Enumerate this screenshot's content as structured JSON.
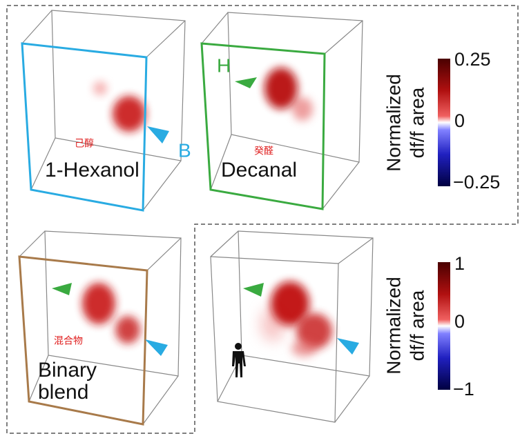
{
  "panels": [
    {
      "label": "1-Hexanol",
      "translation": "己醇",
      "marker": "B"
    },
    {
      "label": "Decanal",
      "translation": "癸醛",
      "marker": "H"
    },
    {
      "label_lines": [
        "Binary",
        "blend"
      ],
      "translation": "混合物"
    },
    {}
  ],
  "colorbars": [
    {
      "title_lines": [
        "Normalized",
        "df/f area"
      ],
      "ticks": [
        "0.25",
        "0",
        "−0.25"
      ]
    },
    {
      "title_lines": [
        "Normalized",
        "df/f area"
      ],
      "ticks": [
        "1",
        "0",
        "−1"
      ]
    }
  ]
}
